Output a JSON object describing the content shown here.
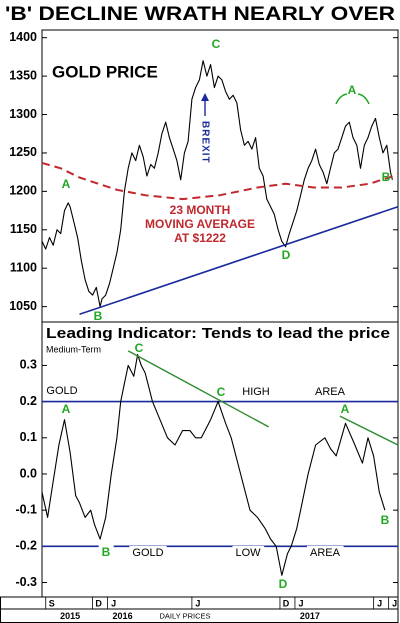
{
  "chart_data": [
    {
      "type": "line",
      "title": "'B' DECLINE WRATH NEARLY OVER",
      "xlim": [
        2015.65,
        2017.55
      ],
      "ylim": [
        1030,
        1410
      ],
      "yticks": [
        1050,
        1100,
        1150,
        1200,
        1250,
        1300,
        1350,
        1400
      ],
      "annotations": [
        "GOLD PRICE",
        "C",
        "A",
        "B",
        "D",
        "A",
        "B",
        "BREXIT",
        "23 MONTH",
        "MOVING AVERAGE",
        "AT $1222"
      ],
      "series": [
        {
          "color": "#000000",
          "dash": false,
          "width": 1.1,
          "x": [
            2015.65,
            2015.67,
            2015.69,
            2015.71,
            2015.73,
            2015.75,
            2015.77,
            2015.79,
            2015.8,
            2015.82,
            2015.84,
            2015.86,
            2015.88,
            2015.9,
            2015.92,
            2015.94,
            2015.96,
            2015.97,
            2015.99,
            2016.01,
            2016.03,
            2016.05,
            2016.07,
            2016.09,
            2016.11,
            2016.13,
            2016.15,
            2016.17,
            2016.19,
            2016.21,
            2016.23,
            2016.25,
            2016.27,
            2016.29,
            2016.31,
            2016.33,
            2016.35,
            2016.37,
            2016.39,
            2016.41,
            2016.43,
            2016.45,
            2016.47,
            2016.49,
            2016.51,
            2016.53,
            2016.55,
            2016.57,
            2016.59,
            2016.61,
            2016.63,
            2016.65,
            2016.67,
            2016.69,
            2016.71,
            2016.73,
            2016.75,
            2016.77,
            2016.79,
            2016.81,
            2016.83,
            2016.85,
            2016.87,
            2016.89,
            2016.91,
            2016.93,
            2016.95,
            2016.97,
            2016.99,
            2017.01,
            2017.03,
            2017.05,
            2017.07,
            2017.09,
            2017.11,
            2017.13,
            2017.15,
            2017.17,
            2017.19,
            2017.21,
            2017.23,
            2017.25,
            2017.27,
            2017.29,
            2017.31,
            2017.33,
            2017.35,
            2017.37,
            2017.39,
            2017.41,
            2017.43,
            2017.45,
            2017.47,
            2017.49,
            2017.51,
            2017.52
          ],
          "values": [
            1135,
            1125,
            1140,
            1130,
            1150,
            1145,
            1175,
            1185,
            1180,
            1160,
            1140,
            1110,
            1085,
            1070,
            1065,
            1075,
            1050,
            1060,
            1065,
            1080,
            1100,
            1120,
            1150,
            1200,
            1230,
            1250,
            1240,
            1260,
            1245,
            1220,
            1235,
            1230,
            1250,
            1275,
            1290,
            1270,
            1255,
            1240,
            1215,
            1250,
            1265,
            1320,
            1335,
            1345,
            1370,
            1350,
            1365,
            1335,
            1350,
            1345,
            1330,
            1320,
            1325,
            1315,
            1280,
            1260,
            1265,
            1255,
            1270,
            1230,
            1220,
            1190,
            1180,
            1170,
            1150,
            1135,
            1128,
            1145,
            1160,
            1175,
            1195,
            1215,
            1230,
            1240,
            1255,
            1235,
            1225,
            1210,
            1230,
            1250,
            1255,
            1270,
            1285,
            1290,
            1270,
            1260,
            1230,
            1260,
            1270,
            1285,
            1295,
            1270,
            1250,
            1260,
            1225,
            1215
          ]
        },
        {
          "color": "#c0282d",
          "dash": true,
          "width": 2,
          "x": [
            2015.65,
            2015.75,
            2015.85,
            2015.95,
            2016.05,
            2016.2,
            2016.4,
            2016.6,
            2016.8,
            2016.95,
            2017.1,
            2017.25,
            2017.4,
            2017.55
          ],
          "values": [
            1237,
            1230,
            1218,
            1210,
            1202,
            1195,
            1190,
            1195,
            1205,
            1210,
            1205,
            1205,
            1210,
            1222
          ]
        },
        {
          "color": "#1a2a9c",
          "dash": false,
          "width": 1.6,
          "x": [
            2015.85,
            2017.55
          ],
          "values": [
            1040,
            1180
          ]
        }
      ]
    },
    {
      "type": "line",
      "title": "Leading Indicator: Tends to lead the price",
      "subtitle": "Medium-Term",
      "xlabel": "DAILY PRICES",
      "xlim": [
        2015.65,
        2017.55
      ],
      "ylim": [
        -0.34,
        0.42
      ],
      "yticks": [
        -0.3,
        -0.2,
        -0.1,
        {
          "value": 0,
          "label": "0.0"
        },
        0.1,
        0.2,
        0.3
      ],
      "xticks": [
        {
          "value": 2015.67,
          "label": "S"
        },
        {
          "value": 2015.92,
          "label": "D"
        },
        {
          "value": 2016.0,
          "label": "J"
        },
        {
          "value": 2016.45,
          "label": "J"
        },
        {
          "value": 2016.92,
          "label": "D"
        },
        {
          "value": 2017.0,
          "label": "J"
        },
        {
          "value": 2017.42,
          "label": "J"
        },
        {
          "value": 2017.5,
          "label": "J"
        }
      ],
      "years": [
        {
          "value": 2015.8,
          "label": "2015"
        },
        {
          "value": 2016.08,
          "label": "2016"
        },
        {
          "value": 2017.08,
          "label": "2017"
        }
      ],
      "hlines": [
        {
          "value": 0.2,
          "color": "#1a2a9c"
        },
        {
          "value": -0.2,
          "color": "#1a2a9c"
        }
      ],
      "annotations": [
        "GOLD",
        "HIGH",
        "AREA",
        "A",
        "C",
        "C",
        "A",
        "B",
        "GOLD",
        "LOW",
        "AREA",
        "D",
        "B"
      ],
      "series": [
        {
          "color": "#000000",
          "dash": false,
          "width": 1.1,
          "x": [
            2015.65,
            2015.68,
            2015.71,
            2015.74,
            2015.77,
            2015.8,
            2015.83,
            2015.85,
            2015.88,
            2015.91,
            2015.93,
            2015.96,
            2015.99,
            2016.02,
            2016.05,
            2016.07,
            2016.09,
            2016.11,
            2016.14,
            2016.16,
            2016.18,
            2016.2,
            2016.24,
            2016.28,
            2016.32,
            2016.36,
            2016.4,
            2016.44,
            2016.47,
            2016.5,
            2016.55,
            2016.59,
            2016.63,
            2016.66,
            2016.71,
            2016.76,
            2016.8,
            2016.84,
            2016.87,
            2016.9,
            2016.93,
            2016.96,
            2016.98,
            2017.01,
            2017.03,
            2017.07,
            2017.11,
            2017.16,
            2017.19,
            2017.22,
            2017.27,
            2017.32,
            2017.36,
            2017.39,
            2017.42,
            2017.45,
            2017.48
          ],
          "values": [
            -0.05,
            -0.12,
            -0.02,
            0.08,
            0.15,
            0.06,
            -0.06,
            -0.08,
            -0.12,
            -0.1,
            -0.14,
            -0.18,
            -0.12,
            0.0,
            0.1,
            0.2,
            0.25,
            0.3,
            0.27,
            0.33,
            0.3,
            0.28,
            0.2,
            0.15,
            0.1,
            0.08,
            0.12,
            0.12,
            0.1,
            0.1,
            0.15,
            0.2,
            0.14,
            0.1,
            0.0,
            -0.1,
            -0.12,
            -0.15,
            -0.18,
            -0.2,
            -0.28,
            -0.22,
            -0.2,
            -0.15,
            -0.1,
            0.0,
            0.08,
            0.1,
            0.07,
            0.05,
            0.14,
            0.08,
            0.03,
            0.1,
            0.05,
            -0.05,
            -0.1
          ]
        },
        {
          "color": "#2e8b2e",
          "dash": false,
          "width": 1.4,
          "x": [
            2016.11,
            2016.86
          ],
          "values": [
            0.34,
            0.13
          ]
        },
        {
          "color": "#2e8b2e",
          "dash": false,
          "width": 1.4,
          "x": [
            2017.24,
            2017.55
          ],
          "values": [
            0.16,
            0.08
          ]
        }
      ]
    }
  ]
}
